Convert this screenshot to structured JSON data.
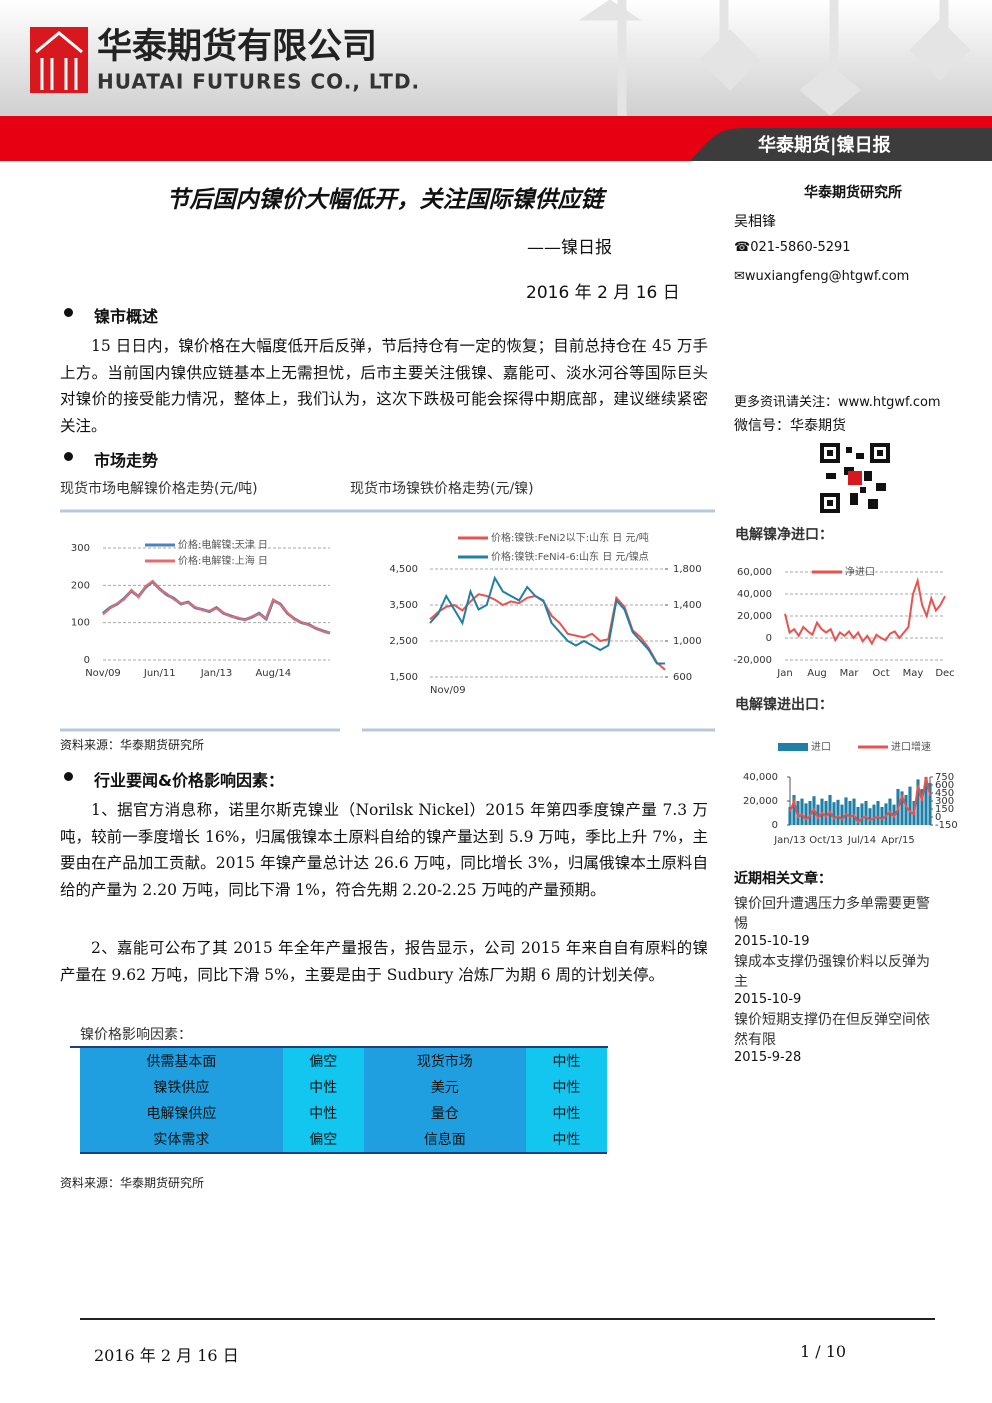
{
  "header": {
    "company_cn": "华泰期货有限公司",
    "company_en": "HUATAI FUTURES CO., LTD.",
    "banner": "华泰期货|镍日报"
  },
  "title": "节后国内镍价大幅低开，关注国际镍供应链",
  "subtitle": "——镍日报",
  "date": "2016 年 2 月 16 日",
  "sidebar": {
    "institute": "华泰期货研究所",
    "author": "吴相锋",
    "phone": "☎021-5860-5291",
    "email": "✉wuxiangfeng@htgwf.com",
    "more": "更多资讯请关注：www.htgwf.com",
    "wechat": "微信号：华泰期货",
    "related_title": "近期相关文章：",
    "articles": [
      {
        "title": "镍价回升遭遇压力多单需要更警惕",
        "date": "2015-10-19"
      },
      {
        "title": "镍成本支撑仍强镍价料以反弹为主",
        "date": "2015-10-9"
      },
      {
        "title": "镍价短期支撑仍在但反弹空间依然有限",
        "date": "2015-9-28"
      }
    ]
  },
  "sections": [
    {
      "heading": "镍市概述",
      "paragraphs": [
        "15 日日内，镍价格在大幅度低开后反弹，节后持仓有一定的恢复；目前总持仓在 45 万手上方。当前国内镍供应链基本上无需担忧，后市主要关注俄镍、嘉能可、淡水河谷等国际巨头对镍价的接受能力情况，整体上，我们认为，这次下跌极可能会探得中期底部，建议继续紧密关注。"
      ]
    },
    {
      "heading": "市场走势",
      "source": "资料来源：华泰期货研究所"
    },
    {
      "heading": "行业要闻&价格影响因素：",
      "paragraphs": [
        "1、据官方消息称，诺里尔斯克镍业（Norilsk Nickel）2015 年第四季度镍产量 7.3 万吨，较前一季度增长 16%，归属俄镍本土原料自给的镍产量达到 5.9 万吨，季比上升 7%，主要由在产品加工贡献。2015 年镍产量总计达 26.6 万吨，同比增长 3%，归属俄镍本土原料自给的产量为 2.20 万吨，同比下滑 1%，符合先期 2.20-2.25 万吨的产量预期。",
        "2、嘉能可公布了其 2015 年全年产量报告，报告显示，公司 2015 年来自自有原料的镍产量在 9.62 万吨，同比下滑 5%，主要是由于 Sudbury 冶炼厂为期 6 周的计划关停。"
      ],
      "source": "资料来源：华泰期货研究所"
    }
  ],
  "table": {
    "caption": "镍价格影响因素：",
    "rows": [
      [
        "供需基本面",
        "偏空",
        "现货市场",
        "中性"
      ],
      [
        "镍铁供应",
        "中性",
        "美元",
        "中性"
      ],
      [
        "电解镍供应",
        "中性",
        "量仓",
        "中性"
      ],
      [
        "实体需求",
        "偏空",
        "信息面",
        "中性"
      ]
    ]
  },
  "chart_data": [
    {
      "type": "line",
      "title": "现货市场电解镍价格走势(元/吨)",
      "categories": [
        "Nov/09",
        null,
        null,
        null,
        null,
        null,
        null,
        null,
        "Jun/11",
        null,
        null,
        null,
        null,
        null,
        null,
        null,
        "Jan/13",
        null,
        null,
        null,
        null,
        null,
        null,
        null,
        "Aug/14",
        null,
        null,
        null,
        null,
        null,
        null,
        null,
        null
      ],
      "ylim": [
        0,
        300
      ],
      "yticks": [
        0,
        100,
        200,
        300
      ],
      "grid": true,
      "series": [
        {
          "name": "价格:电解镍:天津 日",
          "color": "#4f81bd",
          "values": [
            125,
            140,
            150,
            165,
            185,
            170,
            195,
            210,
            190,
            175,
            165,
            150,
            155,
            140,
            135,
            130,
            140,
            125,
            118,
            112,
            108,
            115,
            125,
            110,
            160,
            150,
            125,
            110,
            100,
            95,
            85,
            78,
            72
          ]
        },
        {
          "name": "价格:电解镍:上海 日",
          "color": "#e46c6c",
          "values": [
            122,
            138,
            152,
            162,
            188,
            168,
            198,
            212,
            188,
            178,
            162,
            152,
            153,
            142,
            133,
            132,
            138,
            127,
            116,
            114,
            106,
            117,
            123,
            112,
            162,
            148,
            127,
            108,
            102,
            93,
            87,
            76,
            73
          ]
        }
      ]
    },
    {
      "type": "line",
      "title": "现货市场镍铁价格走势(元/镍)",
      "categories": [
        "Nov/09",
        null,
        null,
        null,
        null,
        null,
        null,
        null,
        null,
        null,
        null,
        null,
        null,
        null,
        null,
        null,
        null,
        null,
        null,
        null,
        null,
        null,
        null,
        null,
        null,
        null,
        null,
        null,
        null,
        null
      ],
      "ylim": [
        1500,
        4500
      ],
      "yticks": [
        {
          "value": 1500,
          "label": "1,500"
        },
        {
          "value": 2500,
          "label": "2,500"
        },
        {
          "value": 3500,
          "label": "3,500"
        },
        {
          "value": 4500,
          "label": "4,500"
        }
      ],
      "y2lim": [
        600,
        1800
      ],
      "y2ticks": [
        600,
        {
          "value": 1000,
          "label": "1,000"
        },
        {
          "value": 1400,
          "label": "1,400"
        },
        {
          "value": 1800,
          "label": "1,800"
        }
      ],
      "grid": true,
      "series": [
        {
          "name": "价格:镍铁:FeNi2以下:山东 日 元/吨",
          "color": "#e8534f",
          "values": [
            3100,
            3300,
            3450,
            3500,
            3350,
            3600,
            3800,
            3750,
            3650,
            3500,
            3600,
            3550,
            3700,
            3750,
            3600,
            3200,
            3000,
            2700,
            2650,
            2600,
            2700,
            2500,
            2550,
            3700,
            3450,
            2800,
            2600,
            2300,
            1900,
            1700
          ]
        },
        {
          "name": "价格:镍铁:FeNi4-6:山东 日 元/镍点",
          "color": "#1f7fa6",
          "axis": "y2",
          "values": [
            1200,
            1300,
            1500,
            1350,
            1200,
            1550,
            1350,
            1400,
            1700,
            1550,
            1500,
            1450,
            1600,
            1500,
            1450,
            1200,
            1100,
            1000,
            950,
            1000,
            950,
            900,
            950,
            1450,
            1350,
            1100,
            1000,
            900,
            750,
            750
          ]
        }
      ]
    },
    {
      "type": "line",
      "title": "电解镍净进口：",
      "categories": [
        "Jan",
        null,
        null,
        null,
        null,
        null,
        null,
        "Aug",
        null,
        null,
        null,
        null,
        null,
        null,
        "Mar",
        null,
        null,
        null,
        null,
        null,
        null,
        "Oct",
        null,
        null,
        null,
        null,
        null,
        null,
        "May",
        null,
        null,
        null,
        null,
        null,
        null,
        "Dec"
      ],
      "ylim": [
        -20000,
        60000
      ],
      "yticks": [
        {
          "value": -20000,
          "label": "-20,000"
        },
        0,
        {
          "value": 20000,
          "label": "20,000"
        },
        {
          "value": 40000,
          "label": "40,000"
        },
        {
          "value": 60000,
          "label": "60,000"
        }
      ],
      "grid": true,
      "series": [
        {
          "name": "净进口",
          "color": "#e8534f",
          "values": [
            22000,
            5000,
            8000,
            2000,
            10000,
            6000,
            3000,
            14000,
            8000,
            5000,
            8000,
            -2000,
            5000,
            2000,
            6000,
            0,
            5000,
            -3000,
            2000,
            -5000,
            3000,
            0,
            -2000,
            4000,
            6000,
            0,
            5000,
            10000,
            40000,
            52000,
            30000,
            20000,
            36000,
            25000,
            30000,
            38000
          ]
        }
      ]
    },
    {
      "type": "bar-line",
      "title": "电解镍进出口：",
      "categories": [
        "Jan/13",
        null,
        null,
        null,
        null,
        null,
        null,
        null,
        null,
        "Oct/13",
        null,
        null,
        null,
        null,
        null,
        null,
        null,
        null,
        "Jul/14",
        null,
        null,
        null,
        null,
        null,
        null,
        null,
        null,
        "Apr/15",
        null,
        null,
        null,
        null,
        null,
        null,
        null,
        null
      ],
      "ylim": [
        0,
        40000
      ],
      "yticks": [
        0,
        {
          "value": 20000,
          "label": "20,000"
        },
        {
          "value": 40000,
          "label": "40,000"
        }
      ],
      "y2lim": [
        -150,
        750
      ],
      "y2ticks": [
        -150,
        0,
        150,
        300,
        450,
        600,
        750
      ],
      "grid": false,
      "series": [
        {
          "name": "进口",
          "color": "#1f7fa6",
          "mark": "bar",
          "values": [
            15000,
            25000,
            20000,
            22000,
            18000,
            20000,
            24000,
            17000,
            22000,
            20000,
            25000,
            19000,
            21000,
            17000,
            23000,
            20000,
            22000,
            15000,
            18000,
            20000,
            14000,
            17000,
            20000,
            15000,
            18000,
            22000,
            17000,
            30000,
            28000,
            25000,
            32000,
            20000,
            38000,
            30000,
            40000,
            35000
          ]
        },
        {
          "name": "进口增速",
          "color": "#e8534f",
          "mark": "line",
          "axis": "y2",
          "values": [
            100,
            300,
            0,
            50,
            -50,
            20,
            150,
            -20,
            80,
            0,
            100,
            -30,
            20,
            -50,
            60,
            0,
            40,
            -100,
            -20,
            10,
            -60,
            -20,
            0,
            -40,
            20,
            100,
            0,
            150,
            400,
            200,
            100,
            50,
            600,
            300,
            750,
            400
          ]
        }
      ]
    }
  ],
  "footer": {
    "date": "2016 年 2 月 16 日",
    "page": "1 / 10"
  }
}
